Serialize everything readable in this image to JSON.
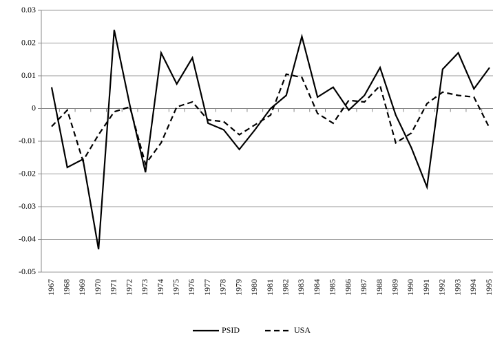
{
  "chart_data": {
    "type": "line",
    "categories": [
      "1967",
      "1968",
      "1969",
      "1970",
      "1971",
      "1972",
      "1973",
      "1974",
      "1975",
      "1976",
      "1977",
      "1978",
      "1979",
      "1980",
      "1981",
      "1982",
      "1983",
      "1984",
      "1985",
      "1986",
      "1987",
      "1988",
      "1989",
      "1990",
      "1991",
      "1992",
      "1993",
      "1994",
      "1995"
    ],
    "series": [
      {
        "name": "PSID",
        "color": "#000000",
        "dash": "solid",
        "values": [
          0.0065,
          -0.018,
          -0.0155,
          -0.043,
          0.024,
          0.001,
          -0.0195,
          0.017,
          0.0075,
          0.0155,
          -0.0045,
          -0.0065,
          -0.0125,
          -0.0065,
          0.0,
          0.004,
          0.022,
          0.0035,
          0.0065,
          -0.0005,
          0.004,
          0.0125,
          -0.002,
          -0.012,
          -0.024,
          0.012,
          0.017,
          0.006,
          0.0125
        ]
      },
      {
        "name": "USA",
        "color": "#000000",
        "dash": "dashed",
        "values": [
          -0.0055,
          -0.0005,
          -0.016,
          -0.008,
          -0.001,
          0.0005,
          -0.017,
          -0.0105,
          0.0005,
          0.002,
          -0.0035,
          -0.004,
          -0.008,
          -0.005,
          -0.002,
          0.0105,
          0.0095,
          -0.0015,
          -0.0045,
          0.0025,
          0.002,
          0.007,
          -0.0105,
          -0.0075,
          0.0015,
          0.005,
          0.004,
          0.0035,
          -0.006
        ]
      }
    ],
    "ylim": [
      -0.05,
      0.03
    ],
    "yticks": [
      -0.05,
      -0.04,
      -0.03,
      -0.02,
      -0.01,
      0,
      0.01,
      0.02,
      0.03
    ],
    "grid": true,
    "legend": "bottom"
  }
}
